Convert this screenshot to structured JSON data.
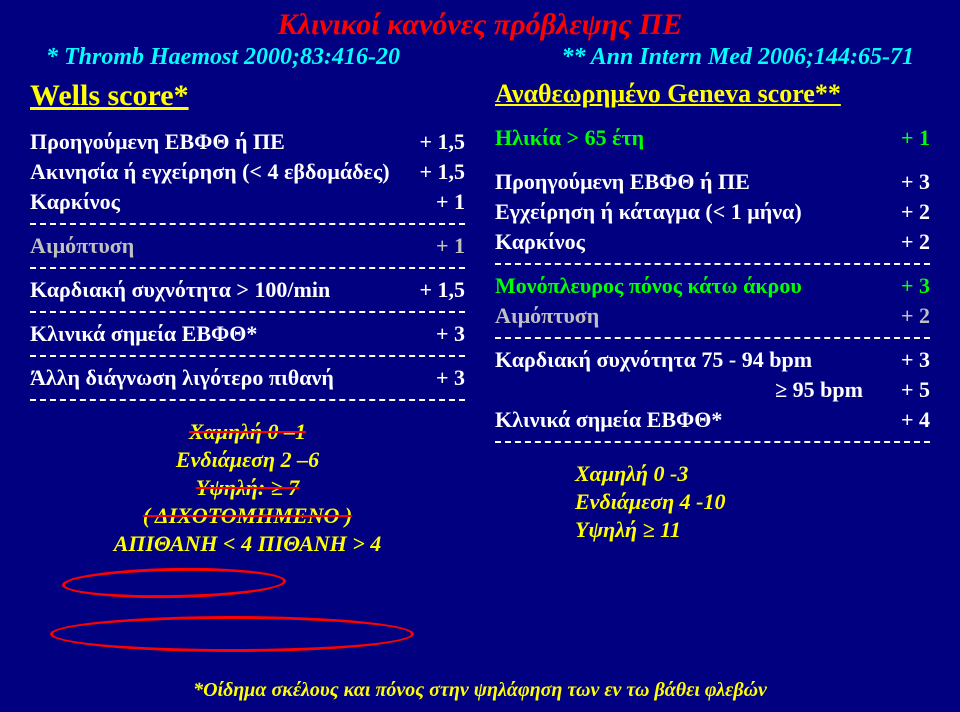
{
  "colors": {
    "background": "#000080",
    "title": "#ff0000",
    "ref": "#00ffff",
    "white": "#ffffff",
    "yellow": "#ffff00",
    "grey": "#c0c0c0",
    "green": "#00ff00",
    "ellipse": "#ff0000",
    "footnote": "#ffff00"
  },
  "fonts": {
    "family": "Times New Roman, serif",
    "title_size": 30,
    "ref_size": 24,
    "score_title_size": 30,
    "row_size": 22,
    "interp_size": 22,
    "footnote_size": 20
  },
  "title": "Κλινικοί κανόνες πρόβλεψης ΠΕ",
  "ref_left": "* Thromb Haemost 2000;83:416-20",
  "ref_right": "** Ann Intern Med 2006;144:65-71",
  "wells": {
    "title": "Wells score*",
    "rows": [
      {
        "label": "Προηγούμενη ΕΒΦΘ ή ΠΕ",
        "val": "+ 1,5",
        "color": "#ffffff",
        "divider": false
      },
      {
        "label": "Ακινησία ή εγχείρηση (< 4  εβδομάδες)",
        "val": "+ 1,5",
        "color": "#ffffff",
        "divider": false
      },
      {
        "label": "Καρκίνος",
        "val": "+ 1",
        "color": "#ffffff",
        "divider": true
      },
      {
        "label": "Αιμόπτυση",
        "val": "+ 1",
        "color": "#c0c0c0",
        "divider": true
      },
      {
        "label": "Καρδιακή συχνότητα > 100/min",
        "val": "+ 1,5",
        "color": "#ffffff",
        "divider": true
      },
      {
        "label": "Κλινικά σημεία ΕΒΦΘ*",
        "val": "+ 3",
        "color": "#ffffff",
        "divider": true
      },
      {
        "label": "Άλλη διάγνωση λιγότερο πιθανή",
        "val": "+ 3",
        "color": "#ffffff",
        "divider": true
      }
    ],
    "interp": {
      "low": "Χαμηλή      0 –1",
      "mid": "Ενδιάμεση   2 –6",
      "high": "Υψηλή:        ≥ 7",
      "dich": "( ΔΙΧΟΤΟΜΗΜΕΝΟ )",
      "final": "ΑΠΙΘΑΝΗ < 4     ΠΙΘΑΝΗ > 4"
    }
  },
  "geneva": {
    "title": "Αναθεωρημένο  Geneva score**",
    "age": {
      "label": "Ηλικία > 65 έτη",
      "val": "+ 1"
    },
    "rows": [
      {
        "label": "Προηγούμενη ΕΒΦΘ ή ΠΕ",
        "val": "+ 3",
        "color": "#ffffff",
        "divider": false
      },
      {
        "label": "Εγχείρηση ή κάταγμα (< 1 μήνα)",
        "val": "+ 2",
        "color": "#ffffff",
        "divider": false
      },
      {
        "label": "Καρκίνος",
        "val": "+ 2",
        "color": "#ffffff",
        "divider": true
      },
      {
        "label": "Μονόπλευρος πόνος κάτω άκρου",
        "val": "+ 3",
        "color": "#00ff00",
        "divider": false
      },
      {
        "label": "Αιμόπτυση",
        "val": "+ 2",
        "color": "#c0c0c0",
        "divider": true
      },
      {
        "label": "Καρδιακή συχνότητα 75 - 94 bpm",
        "val": "+ 3",
        "color": "#ffffff",
        "divider": false
      },
      {
        "label": "≥ 95 bpm",
        "val": "+ 5",
        "color": "#ffffff",
        "divider": false,
        "sub": true
      },
      {
        "label": "Κλινικά σημεία ΕΒΦΘ*",
        "val": "+ 4",
        "color": "#ffffff",
        "divider": true
      }
    ],
    "interp": {
      "low": "Χαμηλή        0 -3",
      "mid": "Ενδιάμεση    4 -10",
      "high": "Υψηλή         ≥ 11"
    }
  },
  "footnote": "*Οίδημα σκέλους και πόνος στην ψηλάφηση των εν τω βάθει φλεβών"
}
